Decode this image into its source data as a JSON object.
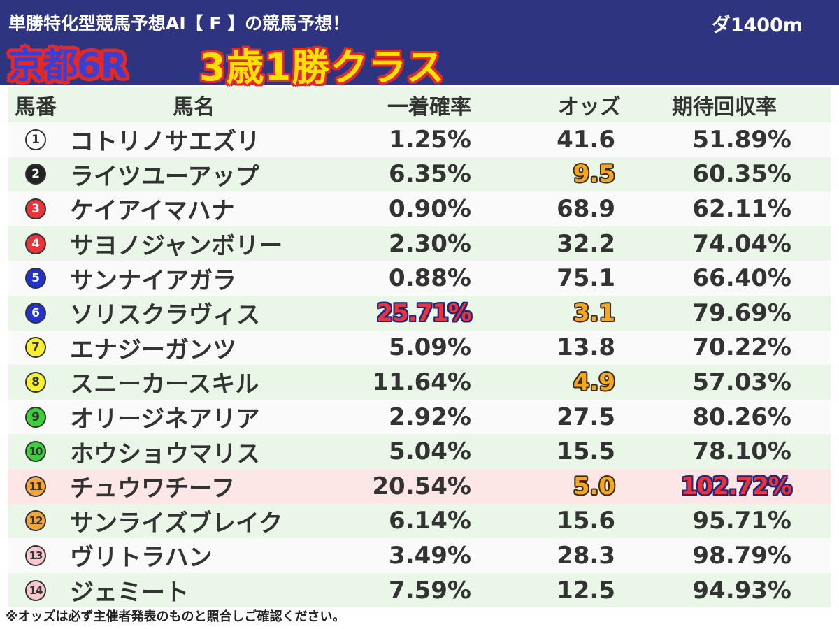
{
  "header": {
    "title": "単勝特化型競馬予想AI【 F 】の競馬予想！",
    "distance": "ダ1400m",
    "race_name": "京都6R",
    "race_class": "3歳1勝クラス"
  },
  "columns": {
    "number": "馬番",
    "name": "馬名",
    "win_probability": "一着確率",
    "odds": "オッズ",
    "expected_return": "期待回収率"
  },
  "colors": {
    "header_bg": "#2f3480",
    "row_green": "#eaf7e8",
    "row_highlight": "#fde6e6",
    "mark_orange": "#f5a623",
    "mark_red": "#e8343a"
  },
  "horses": [
    {
      "num": "1",
      "name": "コトリノサエズリ",
      "win": "1.25%",
      "odds": "41.6",
      "ret": "51.89%",
      "circle_bg": "#ffffff",
      "circle_fg": "#333333"
    },
    {
      "num": "2",
      "name": "ライツユーアップ",
      "win": "6.35%",
      "odds": "9.5",
      "ret": "60.35%",
      "circle_bg": "#222222",
      "circle_fg": "#ffffff",
      "odds_marked": true
    },
    {
      "num": "3",
      "name": "ケイアイマハナ",
      "win": "0.90%",
      "odds": "68.9",
      "ret": "62.11%",
      "circle_bg": "#e8343a",
      "circle_fg": "#ffffff"
    },
    {
      "num": "4",
      "name": "サヨノジャンボリー",
      "win": "2.30%",
      "odds": "32.2",
      "ret": "74.04%",
      "circle_bg": "#e8343a",
      "circle_fg": "#ffffff"
    },
    {
      "num": "5",
      "name": "サンナイアガラ",
      "win": "0.88%",
      "odds": "75.1",
      "ret": "66.40%",
      "circle_bg": "#2233cc",
      "circle_fg": "#ffffff"
    },
    {
      "num": "6",
      "name": "ソリスクラヴィス",
      "win": "25.71%",
      "odds": "3.1",
      "ret": "79.69%",
      "circle_bg": "#2233cc",
      "circle_fg": "#ffffff",
      "win_marked": true,
      "odds_marked": true
    },
    {
      "num": "7",
      "name": "エナジーガンツ",
      "win": "5.09%",
      "odds": "13.8",
      "ret": "70.22%",
      "circle_bg": "#f7f030",
      "circle_fg": "#333333"
    },
    {
      "num": "8",
      "name": "スニーカースキル",
      "win": "11.64%",
      "odds": "4.9",
      "ret": "57.03%",
      "circle_bg": "#f7f030",
      "circle_fg": "#333333",
      "odds_marked": true
    },
    {
      "num": "9",
      "name": "オリージネアリア",
      "win": "2.92%",
      "odds": "27.5",
      "ret": "80.26%",
      "circle_bg": "#3ccf3c",
      "circle_fg": "#333333"
    },
    {
      "num": "10",
      "name": "ホウショウマリス",
      "win": "5.04%",
      "odds": "15.5",
      "ret": "78.10%",
      "circle_bg": "#3ccf3c",
      "circle_fg": "#333333"
    },
    {
      "num": "11",
      "name": "チュウワチーフ",
      "win": "20.54%",
      "odds": "5.0",
      "ret": "102.72%",
      "circle_bg": "#f5a43a",
      "circle_fg": "#333333",
      "odds_marked": true,
      "ret_marked": true,
      "highlight": true
    },
    {
      "num": "12",
      "name": "サンライズブレイク",
      "win": "6.14%",
      "odds": "15.6",
      "ret": "95.71%",
      "circle_bg": "#f5a43a",
      "circle_fg": "#333333"
    },
    {
      "num": "13",
      "name": "ヴリトラハン",
      "win": "3.49%",
      "odds": "28.3",
      "ret": "98.79%",
      "circle_bg": "#f7c6cf",
      "circle_fg": "#333333"
    },
    {
      "num": "14",
      "name": "ジェミート",
      "win": "7.59%",
      "odds": "12.5",
      "ret": "94.93%",
      "circle_bg": "#f7c6cf",
      "circle_fg": "#333333"
    }
  ],
  "footer": {
    "note": "※オッズは必ず主催者発表のものと照合しご確認ください。"
  }
}
